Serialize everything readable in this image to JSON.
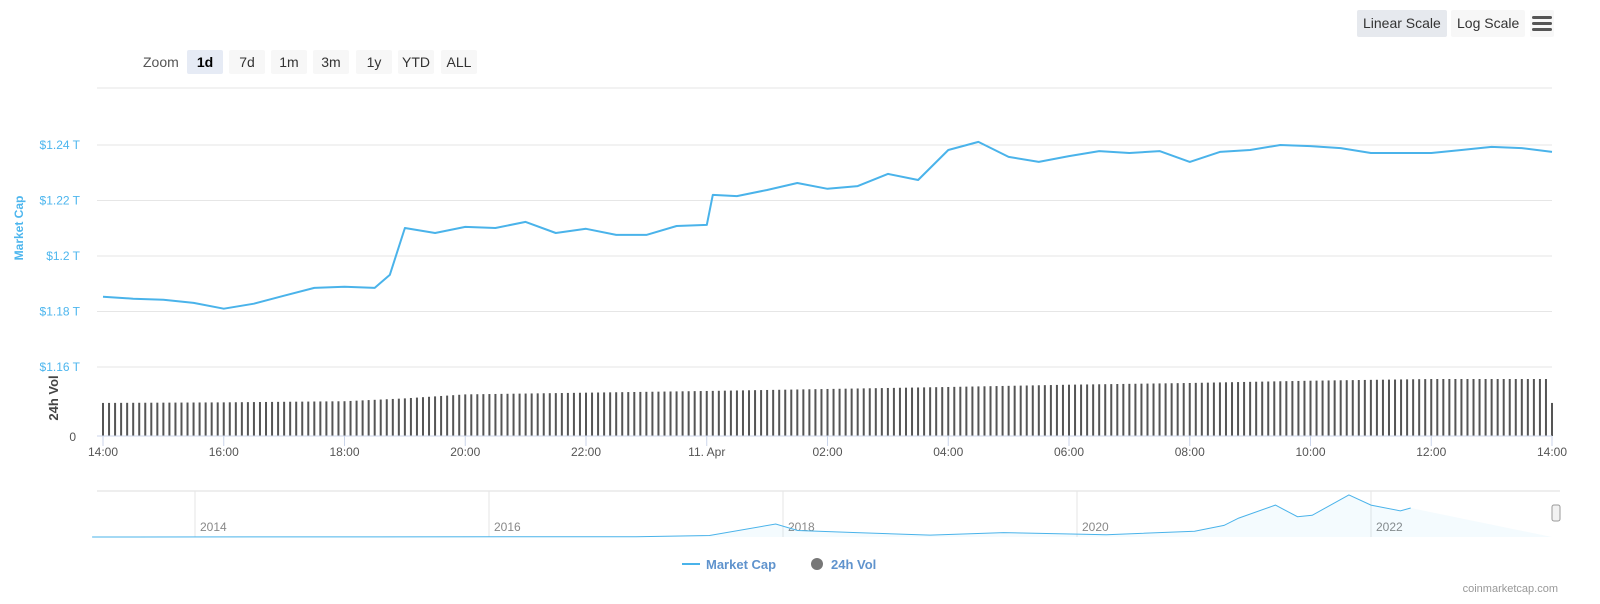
{
  "toolbar": {
    "linear": "Linear Scale",
    "log": "Log Scale",
    "menu_icon": "hamburger-menu-icon",
    "active": "Linear Scale"
  },
  "zoom": {
    "label": "Zoom",
    "buttons": [
      "1d",
      "7d",
      "1m",
      "3m",
      "1y",
      "YTD",
      "ALL"
    ],
    "selected": "1d"
  },
  "credit": "coinmarketcap.com",
  "legend": [
    {
      "name": "Market Cap",
      "color": "#4ab3ea"
    },
    {
      "name": "24h Vol",
      "color": "#777777"
    }
  ],
  "chart_data": {
    "type": "line",
    "ylabel": "Market Cap",
    "y2label": "24h Vol",
    "yticks": [
      "$1.16 T",
      "$1.18 T",
      "$1.2 T",
      "$1.22 T",
      "$1.24 T"
    ],
    "ytick_values": [
      1.16,
      1.18,
      1.2,
      1.22,
      1.24
    ],
    "y2ticks": [
      "0"
    ],
    "ylim": [
      1.16,
      1.26
    ],
    "xticks": [
      "14:00",
      "16:00",
      "18:00",
      "20:00",
      "22:00",
      "11. Apr",
      "02:00",
      "04:00",
      "06:00",
      "08:00",
      "10:00",
      "12:00",
      "14:00"
    ],
    "grid": true,
    "legend_placement": "bottom",
    "series": [
      {
        "name": "Market Cap",
        "color": "#4ab3ea",
        "unit": "T USD",
        "x": [
          "14:00",
          "14:30",
          "15:00",
          "15:30",
          "16:00",
          "16:30",
          "17:00",
          "17:30",
          "18:00",
          "18:30",
          "18:45",
          "19:00",
          "19:30",
          "20:00",
          "20:30",
          "21:00",
          "21:30",
          "22:00",
          "22:30",
          "23:00",
          "23:30",
          "00:00",
          "00:06",
          "00:30",
          "01:00",
          "01:30",
          "02:00",
          "02:30",
          "03:00",
          "03:30",
          "04:00",
          "04:30",
          "05:00",
          "05:30",
          "06:00",
          "06:30",
          "07:00",
          "07:30",
          "08:00",
          "08:30",
          "09:00",
          "09:30",
          "10:00",
          "10:30",
          "11:00",
          "11:30",
          "12:00",
          "12:30",
          "13:00",
          "13:30",
          "14:00"
        ],
        "values": [
          1.1853,
          1.1846,
          1.1842,
          1.1831,
          1.181,
          1.1828,
          1.1857,
          1.1885,
          1.1889,
          1.1885,
          1.1932,
          1.2101,
          1.2083,
          1.2105,
          1.2101,
          1.2123,
          1.2083,
          1.2098,
          1.2076,
          1.2076,
          1.2108,
          1.2112,
          1.222,
          1.2216,
          1.2238,
          1.2263,
          1.2242,
          1.2252,
          1.2296,
          1.2274,
          1.2382,
          1.2411,
          1.2357,
          1.2339,
          1.236,
          1.2378,
          1.2371,
          1.2378,
          1.2339,
          1.2375,
          1.2382,
          1.24,
          1.2396,
          1.2389,
          1.2371,
          1.2371,
          1.2371,
          1.2382,
          1.2393,
          1.2389,
          1.2375
        ]
      },
      {
        "name": "24h Vol",
        "color": "#555555",
        "unit": "relative",
        "x": [
          "14:00",
          "16:00",
          "18:00",
          "19:00",
          "20:00",
          "00:00",
          "04:00",
          "06:00",
          "08:00",
          "10:00",
          "12:00",
          "14:00"
        ],
        "values": [
          0.58,
          0.59,
          0.61,
          0.66,
          0.73,
          0.79,
          0.86,
          0.9,
          0.93,
          0.97,
          1.0,
          1.0
        ]
      }
    ],
    "navigator": {
      "xticks": [
        "2014",
        "2016",
        "2018",
        "2020",
        "2022"
      ],
      "x": [
        2013.3,
        2017.0,
        2017.5,
        2017.95,
        2018.1,
        2018.5,
        2019.0,
        2019.5,
        2020.0,
        2020.2,
        2020.8,
        2021.0,
        2021.1,
        2021.35,
        2021.5,
        2021.6,
        2021.85,
        2022.0,
        2022.2,
        2022.27
      ],
      "values": [
        0.001,
        0.02,
        0.1,
        0.9,
        0.45,
        0.3,
        0.13,
        0.3,
        0.2,
        0.15,
        0.4,
        0.8,
        1.3,
        2.2,
        1.4,
        1.5,
        2.9,
        2.2,
        1.8,
        2.0
      ]
    }
  }
}
